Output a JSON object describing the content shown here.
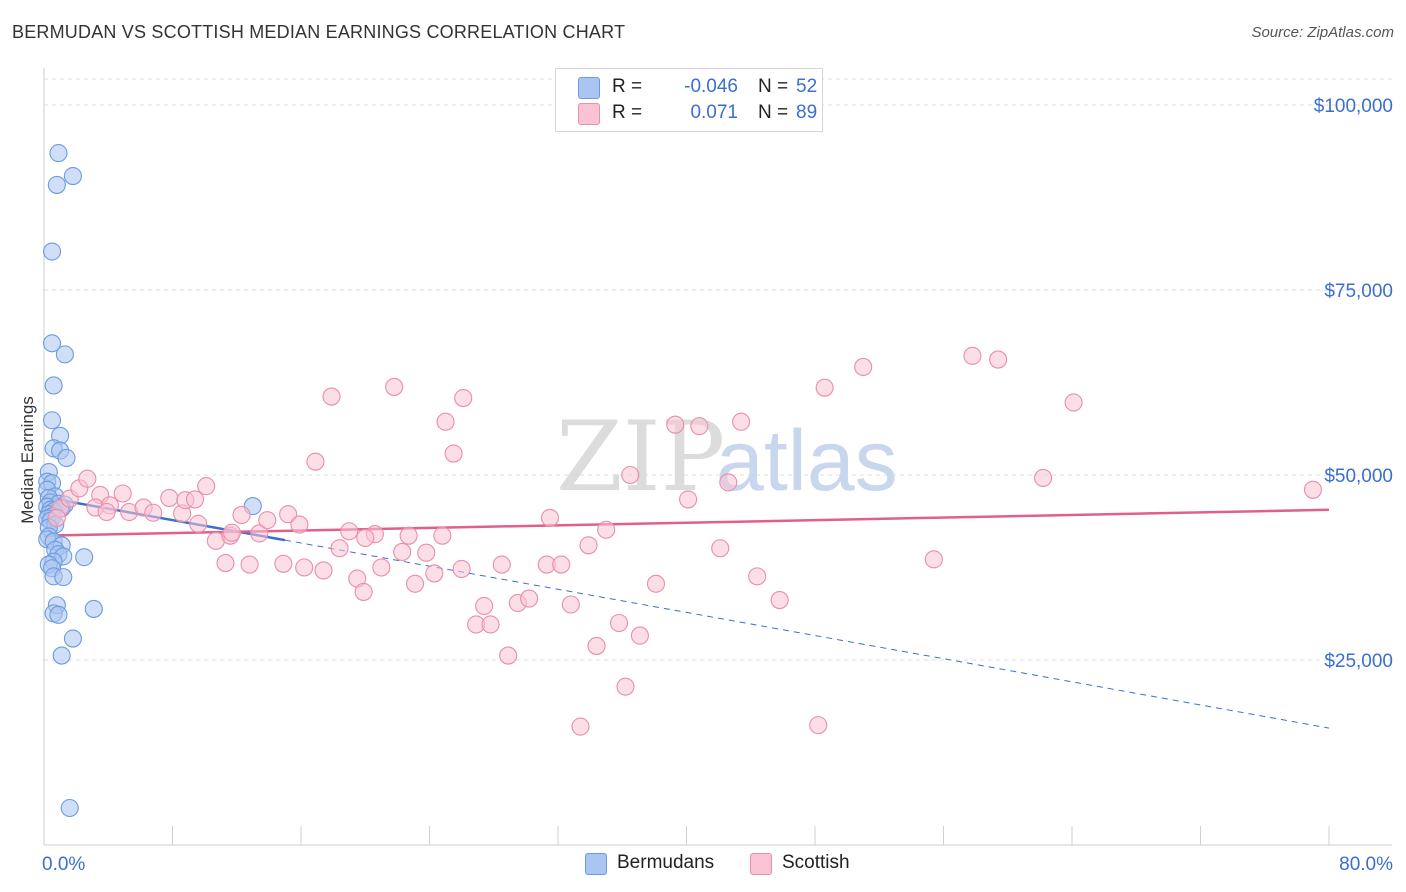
{
  "title": "BERMUDAN VS SCOTTISH MEDIAN EARNINGS CORRELATION CHART",
  "source": "Source: ZipAtlas.com",
  "watermark": {
    "bold": "ZIP",
    "light": "atlas"
  },
  "legend": {
    "rows": [
      {
        "r_label": "R =",
        "r_value": "-0.046",
        "n_label": "N =",
        "n_value": "52",
        "color": "#a9c5f0",
        "border": "#6d9be0"
      },
      {
        "r_label": "R =",
        "r_value": "0.071",
        "n_label": "N =",
        "n_value": "89",
        "color": "#f9c3d3",
        "border": "#e98eab"
      }
    ]
  },
  "bottom_legend": [
    {
      "label": "Bermudans",
      "color": "#a9c5f0",
      "border": "#6d9be0"
    },
    {
      "label": "Scottish",
      "color": "#f9c3d3",
      "border": "#e98eab"
    }
  ],
  "chart_data": {
    "type": "scatter",
    "title": "BERMUDAN VS SCOTTISH MEDIAN EARNINGS CORRELATION CHART",
    "xlabel": "",
    "ylabel": "Median Earnings",
    "xlim": [
      0,
      80
    ],
    "ylim": [
      0,
      105000
    ],
    "x_tick_labels": [
      "0.0%",
      "80.0%"
    ],
    "y_ticks": [
      25000,
      50000,
      75000,
      100000
    ],
    "y_tick_labels": [
      "$25,000",
      "$50,000",
      "$75,000",
      "$100,000"
    ],
    "grid": true,
    "series": [
      {
        "name": "Bermudans",
        "color": "#6d9be0",
        "fill": "#a9c5f0",
        "trend": {
          "x": [
            0,
            15
          ],
          "y": [
            47000,
            41200
          ],
          "dashed_to": [
            80,
            15800
          ]
        },
        "points": [
          [
            0.9,
            93500
          ],
          [
            0.8,
            89200
          ],
          [
            1.8,
            90400
          ],
          [
            0.5,
            80200
          ],
          [
            0.5,
            67800
          ],
          [
            1.3,
            66300
          ],
          [
            0.6,
            62100
          ],
          [
            0.5,
            57400
          ],
          [
            1.0,
            55300
          ],
          [
            0.6,
            53600
          ],
          [
            1.0,
            53300
          ],
          [
            1.4,
            52300
          ],
          [
            0.3,
            50400
          ],
          [
            0.2,
            49100
          ],
          [
            0.5,
            48900
          ],
          [
            0.2,
            48000
          ],
          [
            0.7,
            47100
          ],
          [
            0.3,
            46900
          ],
          [
            0.4,
            46300
          ],
          [
            0.9,
            46100
          ],
          [
            1.3,
            46000
          ],
          [
            0.2,
            45700
          ],
          [
            0.4,
            45300
          ],
          [
            0.6,
            45100
          ],
          [
            1.1,
            45500
          ],
          [
            0.3,
            44700
          ],
          [
            0.5,
            44400
          ],
          [
            0.2,
            44100
          ],
          [
            0.4,
            43800
          ],
          [
            0.7,
            43300
          ],
          [
            0.3,
            42900
          ],
          [
            0.3,
            41700
          ],
          [
            0.2,
            41300
          ],
          [
            0.6,
            41000
          ],
          [
            1.1,
            40500
          ],
          [
            0.7,
            39900
          ],
          [
            0.9,
            39300
          ],
          [
            1.2,
            39000
          ],
          [
            2.5,
            38900
          ],
          [
            0.6,
            38300
          ],
          [
            0.3,
            37900
          ],
          [
            0.5,
            37400
          ],
          [
            0.6,
            36300
          ],
          [
            1.2,
            36200
          ],
          [
            0.8,
            32400
          ],
          [
            0.6,
            31300
          ],
          [
            0.9,
            31100
          ],
          [
            3.1,
            31900
          ],
          [
            1.8,
            27900
          ],
          [
            1.1,
            25600
          ],
          [
            1.6,
            5000
          ],
          [
            13.0,
            45800
          ]
        ]
      },
      {
        "name": "Scottish",
        "color": "#e98eab",
        "fill": "#f9c3d3",
        "trend": {
          "x": [
            0,
            80
          ],
          "y": [
            41800,
            45300
          ]
        },
        "points": [
          [
            1.0,
            45500
          ],
          [
            1.6,
            46800
          ],
          [
            2.2,
            48200
          ],
          [
            2.7,
            49500
          ],
          [
            0.8,
            44200
          ],
          [
            3.5,
            47300
          ],
          [
            4.9,
            47500
          ],
          [
            3.2,
            45600
          ],
          [
            4.1,
            45900
          ],
          [
            5.3,
            45000
          ],
          [
            6.2,
            45600
          ],
          [
            6.8,
            44900
          ],
          [
            7.8,
            46900
          ],
          [
            8.6,
            44800
          ],
          [
            8.8,
            46600
          ],
          [
            9.4,
            46700
          ],
          [
            10.1,
            48500
          ],
          [
            9.6,
            43400
          ],
          [
            10.7,
            41100
          ],
          [
            11.3,
            38100
          ],
          [
            11.6,
            41800
          ],
          [
            12.3,
            44600
          ],
          [
            12.8,
            37900
          ],
          [
            13.4,
            42100
          ],
          [
            13.9,
            43900
          ],
          [
            14.9,
            38000
          ],
          [
            15.2,
            44700
          ],
          [
            15.9,
            43300
          ],
          [
            16.2,
            37500
          ],
          [
            16.9,
            51800
          ],
          [
            17.4,
            37100
          ],
          [
            17.9,
            60600
          ],
          [
            18.4,
            40100
          ],
          [
            19.0,
            42400
          ],
          [
            19.5,
            36000
          ],
          [
            19.9,
            34200
          ],
          [
            20.6,
            42000
          ],
          [
            21.0,
            37500
          ],
          [
            21.8,
            61900
          ],
          [
            22.3,
            39600
          ],
          [
            22.7,
            41800
          ],
          [
            23.1,
            35300
          ],
          [
            23.8,
            39500
          ],
          [
            24.3,
            36700
          ],
          [
            24.8,
            41800
          ],
          [
            25.0,
            57200
          ],
          [
            25.5,
            52900
          ],
          [
            26.0,
            37300
          ],
          [
            26.1,
            60400
          ],
          [
            26.9,
            29800
          ],
          [
            27.4,
            32300
          ],
          [
            27.8,
            29800
          ],
          [
            28.5,
            37900
          ],
          [
            28.9,
            25600
          ],
          [
            29.5,
            32700
          ],
          [
            30.2,
            33300
          ],
          [
            31.3,
            37900
          ],
          [
            31.5,
            44200
          ],
          [
            32.2,
            37900
          ],
          [
            32.8,
            32500
          ],
          [
            33.4,
            16000
          ],
          [
            33.9,
            40500
          ],
          [
            34.4,
            26900
          ],
          [
            35.0,
            42600
          ],
          [
            35.8,
            30000
          ],
          [
            36.2,
            21400
          ],
          [
            36.5,
            50000
          ],
          [
            37.1,
            28300
          ],
          [
            38.1,
            35300
          ],
          [
            39.3,
            56800
          ],
          [
            40.1,
            46700
          ],
          [
            40.8,
            56600
          ],
          [
            42.1,
            40100
          ],
          [
            43.4,
            57200
          ],
          [
            44.4,
            36300
          ],
          [
            45.8,
            33100
          ],
          [
            48.2,
            16200
          ],
          [
            48.6,
            61800
          ],
          [
            51.0,
            64600
          ],
          [
            55.4,
            38600
          ],
          [
            57.8,
            66100
          ],
          [
            59.4,
            65600
          ],
          [
            62.2,
            49600
          ],
          [
            64.1,
            59800
          ],
          [
            79.0,
            48000
          ],
          [
            42.6,
            49000
          ],
          [
            11.7,
            42200
          ],
          [
            20.0,
            41500
          ],
          [
            3.9,
            45000
          ]
        ]
      }
    ]
  }
}
